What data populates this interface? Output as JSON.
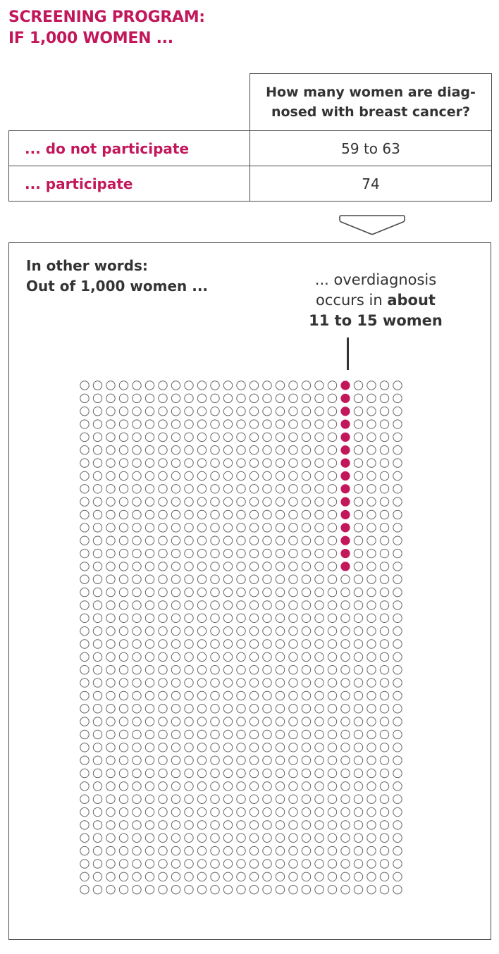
{
  "title": {
    "line1": "SCREENING PROGRAM:",
    "line2": "IF 1,000 WOMEN ..."
  },
  "table": {
    "header": {
      "line1": "How many women are diag-",
      "line2": "nosed with breast cancer?"
    },
    "rows": [
      {
        "label": "... do not participate",
        "value": "59 to 63"
      },
      {
        "label": "... participate",
        "value": "74"
      }
    ]
  },
  "intro": {
    "line1": "In other words:",
    "line2": "Out of 1,000 women ..."
  },
  "annotation": {
    "line1": "... overdiagnosis",
    "line2_prefix": "occurs in ",
    "line2_bold": "about",
    "line3": "11 to 15 women"
  },
  "colors": {
    "accent": "#c2185b",
    "text": "#333333",
    "border": "#4a4a4a",
    "empty_circle": "#666666"
  },
  "chart_data": {
    "type": "icon-array",
    "total": 1000,
    "rows": 40,
    "columns": 25,
    "highlighted_column": 21,
    "highlighted_count": 15,
    "highlight_meaning": "overdiagnosis"
  }
}
